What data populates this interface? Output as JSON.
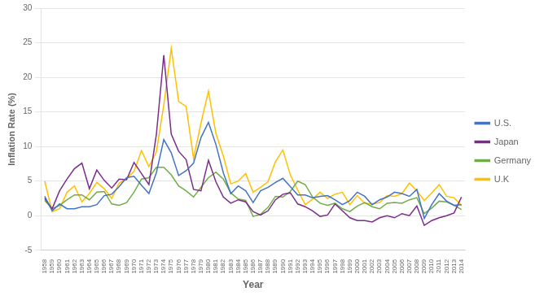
{
  "chart_data": {
    "type": "line",
    "x": [
      1958,
      1959,
      1960,
      1961,
      1962,
      1963,
      1964,
      1965,
      1966,
      1967,
      1968,
      1969,
      1970,
      1971,
      1972,
      1973,
      1974,
      1975,
      1976,
      1977,
      1978,
      1979,
      1980,
      1981,
      1982,
      1983,
      1984,
      1985,
      1986,
      1987,
      1988,
      1989,
      1990,
      1991,
      1992,
      1993,
      1994,
      1995,
      1996,
      1997,
      1998,
      1999,
      2000,
      2001,
      2002,
      2003,
      2004,
      2005,
      2006,
      2007,
      2008,
      2009,
      2010,
      2011,
      2012,
      2013,
      2014
    ],
    "series": [
      {
        "name": "U.S.",
        "color": "#4472C4",
        "values": [
          2.8,
          0.7,
          1.7,
          1.0,
          1.0,
          1.3,
          1.3,
          1.6,
          2.9,
          3.1,
          4.2,
          5.5,
          5.7,
          4.4,
          3.2,
          6.2,
          11.0,
          9.1,
          5.8,
          6.5,
          7.6,
          11.3,
          13.5,
          10.3,
          6.2,
          3.2,
          4.3,
          3.6,
          1.9,
          3.6,
          4.1,
          4.8,
          5.4,
          4.2,
          3.0,
          3.0,
          2.6,
          2.8,
          2.9,
          2.3,
          1.6,
          2.2,
          3.4,
          2.8,
          1.6,
          2.3,
          2.7,
          3.4,
          3.2,
          2.8,
          3.8,
          -0.4,
          1.6,
          3.2,
          2.1,
          1.5,
          1.6
        ]
      },
      {
        "name": "Japan",
        "color": "#7B2D8B",
        "values": [
          2.5,
          1.0,
          3.6,
          5.3,
          6.8,
          7.6,
          3.9,
          6.6,
          5.1,
          4.0,
          5.3,
          5.2,
          7.7,
          6.1,
          4.5,
          11.7,
          23.2,
          11.8,
          9.3,
          8.1,
          3.8,
          3.6,
          8.0,
          4.9,
          2.7,
          1.8,
          2.3,
          2.0,
          0.6,
          0.1,
          0.7,
          2.3,
          3.1,
          3.3,
          1.7,
          1.3,
          0.7,
          -0.1,
          0.1,
          1.7,
          0.7,
          -0.3,
          -0.7,
          -0.7,
          -0.9,
          -0.3,
          0.0,
          -0.3,
          0.3,
          0.0,
          1.4,
          -1.4,
          -0.7,
          -0.3,
          0.0,
          0.4,
          2.7
        ]
      },
      {
        "name": "Germany",
        "color": "#70AD47",
        "values": [
          2.2,
          1.0,
          1.5,
          2.3,
          3.0,
          3.0,
          2.3,
          3.4,
          3.5,
          1.7,
          1.5,
          1.9,
          3.4,
          5.3,
          5.5,
          7.0,
          7.0,
          5.9,
          4.3,
          3.6,
          2.7,
          4.1,
          5.5,
          6.3,
          5.3,
          3.3,
          2.4,
          2.2,
          -0.1,
          0.2,
          1.2,
          2.8,
          2.7,
          3.5,
          5.0,
          4.5,
          2.7,
          1.8,
          1.5,
          1.8,
          1.0,
          0.6,
          1.4,
          1.9,
          1.3,
          1.0,
          1.8,
          1.9,
          1.8,
          2.3,
          2.6,
          0.3,
          1.1,
          2.1,
          2.0,
          1.5,
          0.9
        ]
      },
      {
        "name": "U.K",
        "color": "#FFC000",
        "values": [
          5.0,
          0.6,
          1.0,
          3.4,
          4.3,
          2.0,
          3.2,
          4.8,
          3.9,
          2.5,
          4.7,
          5.4,
          6.4,
          9.4,
          7.1,
          9.2,
          16.0,
          24.2,
          16.5,
          15.8,
          8.3,
          13.4,
          18.0,
          11.9,
          8.6,
          4.6,
          5.0,
          6.1,
          3.4,
          4.1,
          4.9,
          7.8,
          9.5,
          5.9,
          3.7,
          1.6,
          2.4,
          3.4,
          2.5,
          3.1,
          3.4,
          1.6,
          2.9,
          1.8,
          1.7,
          1.9,
          2.9,
          2.8,
          3.2,
          4.7,
          3.6,
          2.2,
          3.3,
          4.5,
          2.8,
          2.6,
          1.5
        ]
      }
    ],
    "xlabel": "Year",
    "ylabel": "Inflation Rate (%)",
    "xlim": [
      1957.5,
      2014.5
    ],
    "xticks": [
      1958,
      1959,
      1960,
      1961,
      1962,
      1963,
      1964,
      1965,
      1966,
      1967,
      1968,
      1969,
      1970,
      1971,
      1972,
      1973,
      1974,
      1975,
      1976,
      1977,
      1978,
      1979,
      1980,
      1981,
      1982,
      1983,
      1984,
      1985,
      1986,
      1987,
      1988,
      1989,
      1990,
      1991,
      1992,
      1993,
      1994,
      1995,
      1996,
      1997,
      1998,
      1999,
      2000,
      2001,
      2002,
      2003,
      2004,
      2005,
      2006,
      2007,
      2008,
      2009,
      2010,
      2011,
      2012,
      2013,
      2014
    ],
    "ylim": [
      -5,
      30
    ],
    "yticks": [
      -5,
      0,
      5,
      10,
      15,
      20,
      25,
      30
    ],
    "grid": "y",
    "legend": "right"
  }
}
